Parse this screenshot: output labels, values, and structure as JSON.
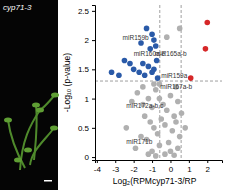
{
  "photo": {
    "label": "cyp71-3"
  },
  "chart_data": {
    "type": "scatter",
    "x_label": "Log₂(RPMcyp71-3/RP",
    "y_label": "-Log₁₀ (p-value)",
    "xlim": [
      -4.1,
      2.8
    ],
    "xticks": [
      -4,
      -3,
      -2,
      -1,
      0,
      1,
      2
    ],
    "ylim": [
      -0.05,
      2.6
    ],
    "yticks": [
      0,
      0.5,
      1,
      1.5,
      2,
      2.5
    ],
    "reference_lines": {
      "x": [
        -0.58,
        0.58
      ],
      "y": [
        1.3
      ]
    },
    "series": [
      {
        "color": "#b0b0b0",
        "marker": "circle",
        "x": [
          -2.1,
          -1.8,
          -1.5,
          -1.2,
          -1.0,
          -0.8,
          -0.6,
          -0.4,
          -0.2,
          0.0,
          0.2,
          0.4,
          -1.4,
          -1.1,
          -0.9,
          -0.5,
          -0.3,
          0.1,
          0.3,
          0.6,
          -1.6,
          -1.3,
          -0.7,
          -0.1,
          0.5,
          -2.4,
          -1.9,
          -1.0,
          -0.6,
          0.0,
          0.4,
          -1.2,
          -0.8,
          -0.3,
          0.2,
          0.8,
          -1.5,
          -0.9,
          0.3,
          0.5,
          -0.2,
          -0.6
        ],
        "values": [
          0.95,
          1.1,
          1.2,
          1.0,
          0.85,
          1.15,
          1.0,
          0.9,
          0.8,
          1.05,
          0.7,
          0.95,
          0.7,
          0.6,
          0.5,
          0.65,
          0.55,
          0.45,
          0.6,
          0.75,
          0.35,
          0.3,
          0.4,
          0.25,
          0.35,
          0.5,
          0.15,
          0.1,
          0.2,
          0.1,
          0.15,
          0.05,
          0.02,
          0.05,
          0.03,
          0.5,
          0.9,
          1.25,
          1.2,
          2.2,
          2.05,
          1.25
        ]
      },
      {
        "color": "#2a5aa8",
        "marker": "circle",
        "x": [
          -1.3,
          -1.0,
          -0.9,
          -1.6,
          -0.8,
          -1.1,
          -2.5,
          -1.5,
          -0.9,
          -2.2,
          -2.0,
          -1.7,
          -1.4,
          -2.8,
          -0.7,
          -1.0,
          -1.2,
          -3.2,
          -0.75
        ],
        "values": [
          2.2,
          2.1,
          2.0,
          1.95,
          1.9,
          1.85,
          1.65,
          1.6,
          1.5,
          1.6,
          1.5,
          1.45,
          1.4,
          1.4,
          1.35,
          1.45,
          1.55,
          1.45,
          1.65
        ]
      },
      {
        "color": "#d62728",
        "marker": "circle",
        "x": [
          2.0,
          1.9,
          1.1
        ],
        "values": [
          2.3,
          1.85,
          1.35
        ]
      }
    ],
    "annotations": [
      {
        "text": "miR159b",
        "x": -2.6,
        "y": 2.0
      },
      {
        "text": "miR160a-c",
        "x": -2.0,
        "y": 1.72
      },
      {
        "text": "miR165a-b",
        "x": -0.85,
        "y": 1.72
      },
      {
        "text": "miR159a",
        "x": -0.5,
        "y": 1.36
      },
      {
        "text": "miR167a-b",
        "x": -0.55,
        "y": 1.16
      },
      {
        "text": "miR172a-b,c",
        "x": -2.4,
        "y": 0.84
      },
      {
        "text": "miR171b",
        "x": -2.4,
        "y": 0.22
      }
    ]
  }
}
